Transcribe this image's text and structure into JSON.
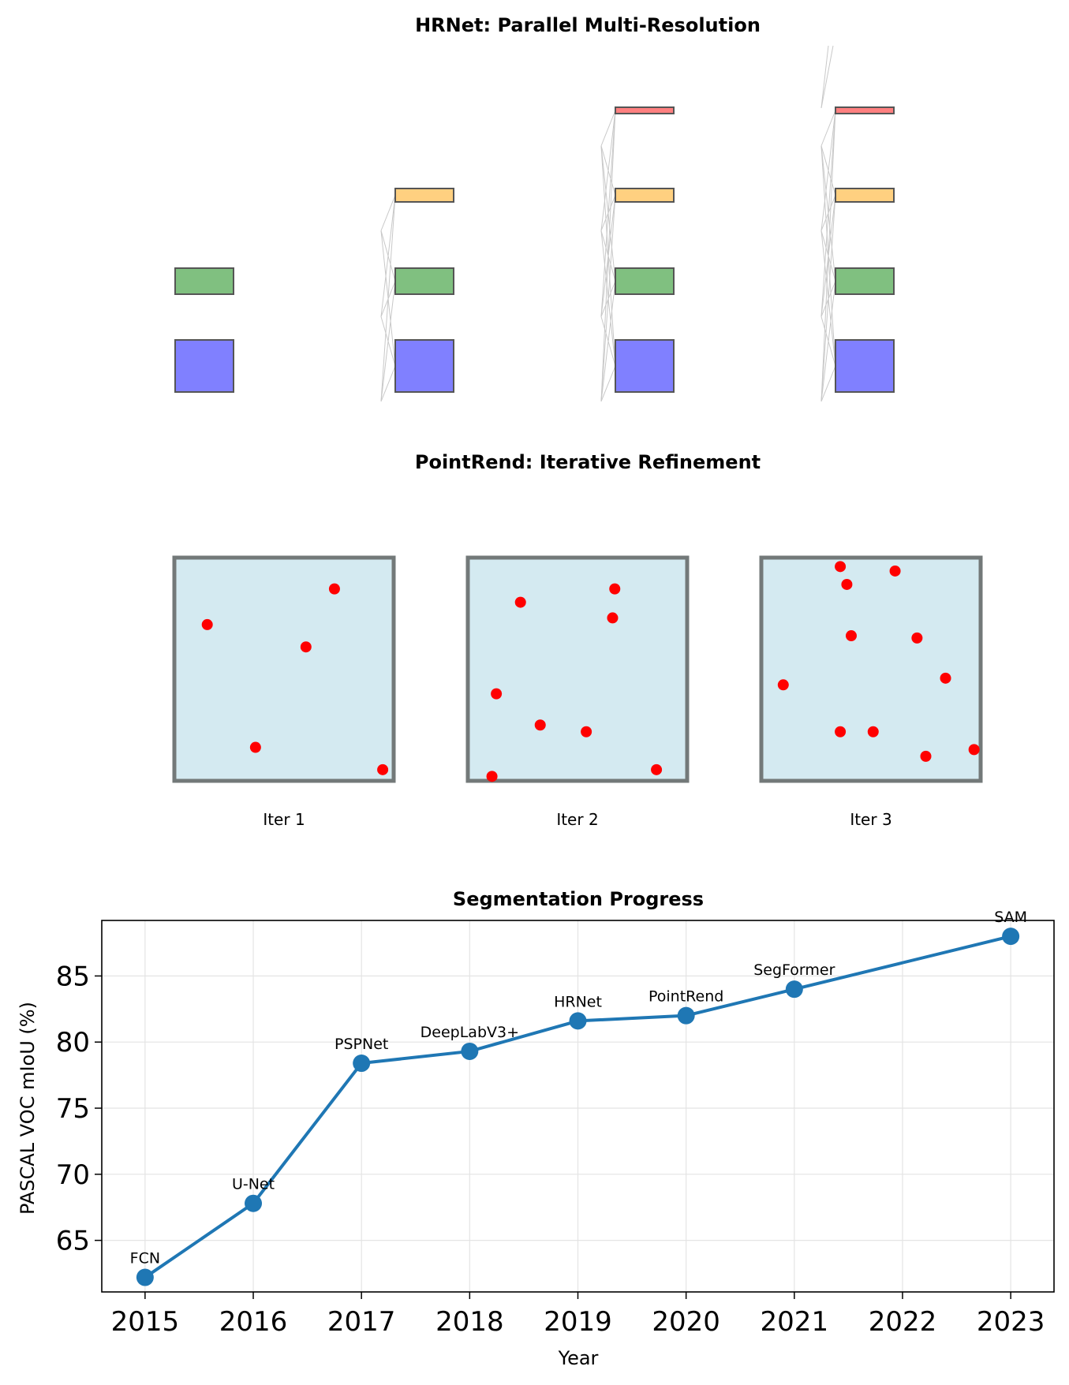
{
  "chart_data": [
    {
      "type": "diagram",
      "title": "HRNet: Parallel Multi-Resolution",
      "stages": [
        {
          "branches": [
            "blue",
            "green"
          ]
        },
        {
          "branches": [
            "blue",
            "green",
            "orange"
          ]
        },
        {
          "branches": [
            "blue",
            "green",
            "orange",
            "red"
          ]
        },
        {
          "branches": [
            "blue",
            "green",
            "orange",
            "red"
          ]
        }
      ],
      "branch_colors": {
        "blue": "#8080ff",
        "green": "#80c080",
        "orange": "#ffd080",
        "red": "#ff8080"
      },
      "connection_color": "#c8c8c8"
    },
    {
      "type": "scatter",
      "title": "PointRend: Iterative Refinement",
      "panel_fill": "#d4eaf1",
      "panel_border": "#737979",
      "point_color": "#ff0000",
      "panels": [
        {
          "label": "Iter 1",
          "points": [
            [
              0.15,
              0.7
            ],
            [
              0.73,
              0.86
            ],
            [
              0.6,
              0.6
            ],
            [
              0.37,
              0.15
            ],
            [
              0.95,
              0.05
            ]
          ]
        },
        {
          "label": "Iter 2",
          "points": [
            [
              0.24,
              0.8
            ],
            [
              0.66,
              0.73
            ],
            [
              0.67,
              0.86
            ],
            [
              0.13,
              0.39
            ],
            [
              0.33,
              0.25
            ],
            [
              0.54,
              0.22
            ],
            [
              0.86,
              0.05
            ],
            [
              0.11,
              0.02
            ]
          ]
        },
        {
          "label": "Iter 3",
          "points": [
            [
              0.36,
              0.96
            ],
            [
              0.39,
              0.88
            ],
            [
              0.61,
              0.94
            ],
            [
              0.41,
              0.65
            ],
            [
              0.71,
              0.64
            ],
            [
              0.1,
              0.43
            ],
            [
              0.84,
              0.46
            ],
            [
              0.36,
              0.22
            ],
            [
              0.51,
              0.22
            ],
            [
              0.75,
              0.11
            ],
            [
              0.97,
              0.14
            ]
          ]
        }
      ]
    },
    {
      "type": "line",
      "title": "Segmentation Progress",
      "xlabel": "Year",
      "ylabel": "PASCAL VOC mIoU (%)",
      "xlim": [
        2014.6,
        2023.4
      ],
      "ylim": [
        61.1,
        89.2
      ],
      "xticks": [
        2015,
        2016,
        2017,
        2018,
        2019,
        2020,
        2021,
        2022,
        2023
      ],
      "yticks": [
        65,
        70,
        75,
        80,
        85
      ],
      "grid": true,
      "line_color": "#1f77b4",
      "points": [
        {
          "x": 2015,
          "y": 62.2,
          "label": "FCN"
        },
        {
          "x": 2016,
          "y": 67.8,
          "label": "U-Net"
        },
        {
          "x": 2017,
          "y": 78.4,
          "label": "PSPNet"
        },
        {
          "x": 2018,
          "y": 79.3,
          "label": "DeepLabV3+"
        },
        {
          "x": 2019,
          "y": 81.6,
          "label": "HRNet"
        },
        {
          "x": 2020,
          "y": 82.0,
          "label": "PointRend"
        },
        {
          "x": 2021,
          "y": 84.0,
          "label": "SegFormer"
        },
        {
          "x": 2023,
          "y": 88.0,
          "label": "SAM"
        }
      ]
    }
  ]
}
